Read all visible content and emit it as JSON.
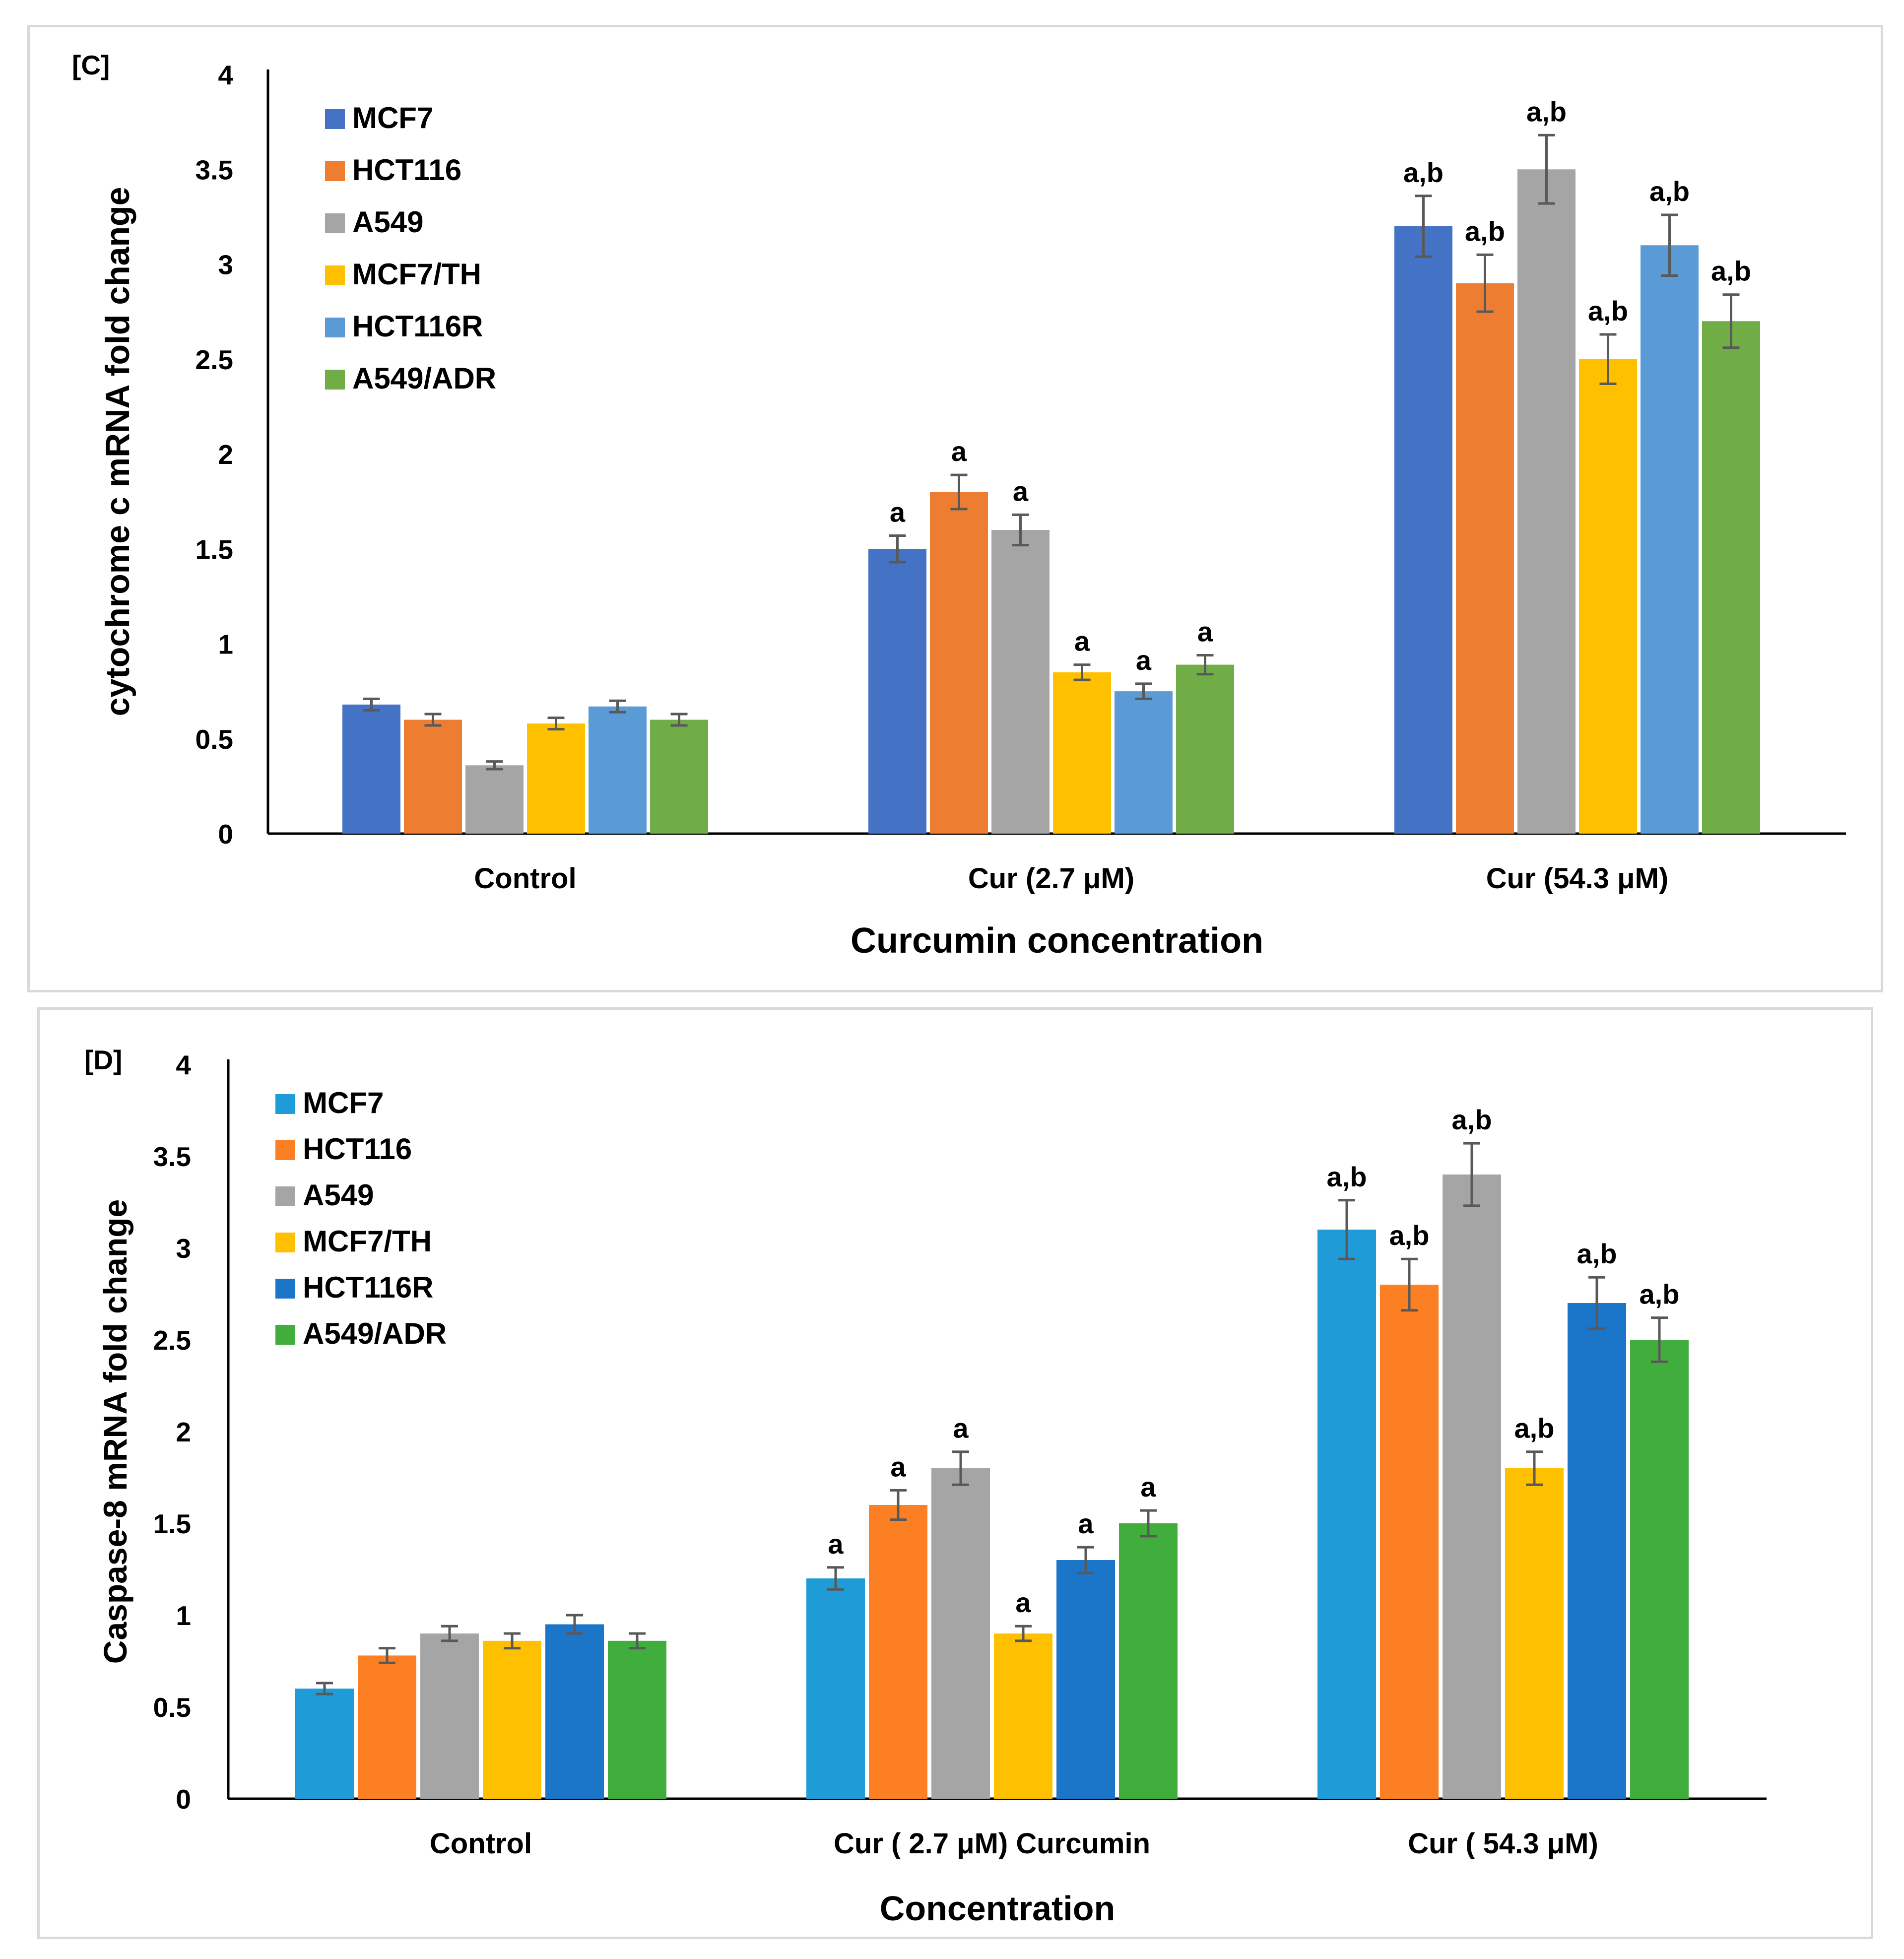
{
  "chart_data": [
    {
      "type": "bar",
      "panel_label": "[C]",
      "title": "",
      "xlabel": "Curcumin concentration",
      "ylabel": "cytochrome c mRNA fold change",
      "ylim": [
        0,
        4
      ],
      "yticks": [
        "0",
        "0.5",
        "1",
        "1.5",
        "2",
        "2.5",
        "3",
        "3.5",
        "4"
      ],
      "categories": [
        "Control",
        "Cur (2.7  μM)",
        "Cur (54.3 μM)"
      ],
      "legend_position": "top-left",
      "series": [
        {
          "name": "MCF7",
          "color": "#4472c4",
          "values": [
            0.68,
            1.5,
            3.2
          ],
          "errors": [
            0.03,
            0.07,
            0.16
          ],
          "labels": [
            "",
            "a",
            "a,b"
          ]
        },
        {
          "name": "HCT116",
          "color": "#ed7d31",
          "values": [
            0.6,
            1.8,
            2.9
          ],
          "errors": [
            0.03,
            0.09,
            0.15
          ],
          "labels": [
            "",
            "a",
            "a,b"
          ]
        },
        {
          "name": "A549",
          "color": "#a5a5a5",
          "values": [
            0.36,
            1.6,
            3.5
          ],
          "errors": [
            0.02,
            0.08,
            0.18
          ],
          "labels": [
            "",
            "a",
            "a,b"
          ]
        },
        {
          "name": "MCF7/TH",
          "color": "#ffc000",
          "values": [
            0.58,
            0.85,
            2.5
          ],
          "errors": [
            0.03,
            0.04,
            0.13
          ],
          "labels": [
            "",
            "a",
            "a,b"
          ]
        },
        {
          "name": "HCT116R",
          "color": "#5b9bd5",
          "values": [
            0.67,
            0.75,
            3.1
          ],
          "errors": [
            0.03,
            0.04,
            0.16
          ],
          "labels": [
            "",
            "a",
            "a,b"
          ]
        },
        {
          "name": "A549/ADR",
          "color": "#70ad47",
          "values": [
            0.6,
            0.89,
            2.7
          ],
          "errors": [
            0.03,
            0.05,
            0.14
          ],
          "labels": [
            "",
            "a",
            "a,b"
          ]
        }
      ]
    },
    {
      "type": "bar",
      "panel_label": "[D]",
      "title": "",
      "xlabel": "Concentration",
      "ylabel": "Caspase-8 mRNA fold change",
      "ylim": [
        0,
        4
      ],
      "yticks": [
        "0",
        "0.5",
        "1",
        "1.5",
        "2",
        "2.5",
        "3",
        "3.5",
        "4"
      ],
      "categories": [
        "Control",
        "Cur ( 2.7  μM) Curcumin",
        "Cur ( 54.3 μM)"
      ],
      "legend_position": "top-left",
      "series": [
        {
          "name": "MCF7",
          "color": "#1f9bd7",
          "values": [
            0.6,
            1.2,
            3.1
          ],
          "errors": [
            0.03,
            0.06,
            0.16
          ],
          "labels": [
            "",
            "a",
            "a,b"
          ]
        },
        {
          "name": "HCT116",
          "color": "#fd7f23",
          "values": [
            0.78,
            1.6,
            2.8
          ],
          "errors": [
            0.04,
            0.08,
            0.14
          ],
          "labels": [
            "",
            "a",
            "a,b"
          ]
        },
        {
          "name": "A549",
          "color": "#a5a5a5",
          "values": [
            0.9,
            1.8,
            3.4
          ],
          "errors": [
            0.04,
            0.09,
            0.17
          ],
          "labels": [
            "",
            "a",
            "a,b"
          ]
        },
        {
          "name": "MCF7/TH",
          "color": "#ffc000",
          "values": [
            0.86,
            0.9,
            1.8
          ],
          "errors": [
            0.04,
            0.04,
            0.09
          ],
          "labels": [
            "",
            "a",
            "a,b"
          ]
        },
        {
          "name": "HCT116R",
          "color": "#1b75c9",
          "values": [
            0.95,
            1.3,
            2.7
          ],
          "errors": [
            0.05,
            0.07,
            0.14
          ],
          "labels": [
            "",
            "a",
            "a,b"
          ]
        },
        {
          "name": "A549/ADR",
          "color": "#41ad3c",
          "values": [
            0.86,
            1.5,
            2.5
          ],
          "errors": [
            0.04,
            0.07,
            0.12
          ],
          "labels": [
            "",
            "a",
            "a,b"
          ]
        }
      ]
    }
  ]
}
